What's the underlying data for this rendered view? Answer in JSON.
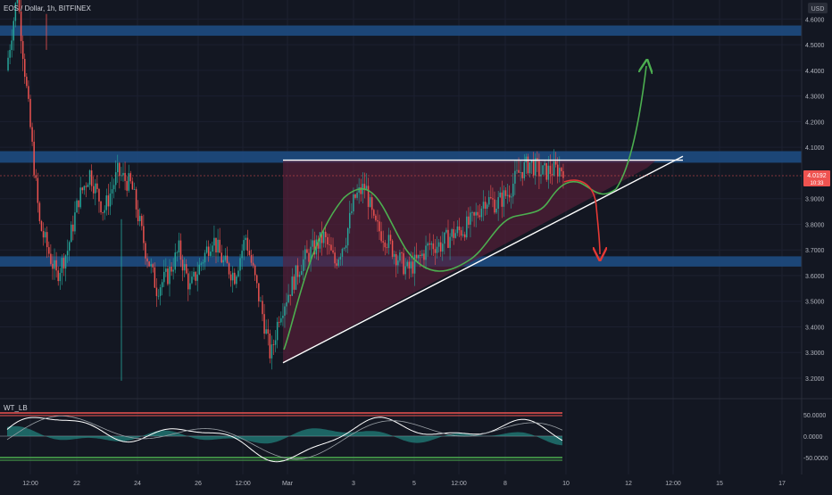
{
  "header": {
    "symbol_line": "EOS / Dollar, 1h, BITFINEX",
    "currency_label": "USD"
  },
  "price_badge": {
    "price": "4.0192",
    "countdown": "10:33"
  },
  "indicator": {
    "name": "WT_LB",
    "ticks": [
      "50.0000",
      "0.0000",
      "-50.0000"
    ],
    "ticks_values": [
      50,
      0,
      -50
    ],
    "range": [
      -80,
      85
    ]
  },
  "colors": {
    "background": "#131722",
    "up_candle": "#26a69a",
    "down_candle": "#ef5350",
    "zone": "#1e4f86",
    "pattern_fill": "#5a1f3a",
    "curve_green": "#4caf50",
    "arrow_red": "#e53935",
    "wt_line": "#ffffff",
    "wt_area": "#26a69a"
  },
  "chart_data": {
    "type": "candlestick",
    "instrument": "EOS / Dollar",
    "timeframe": "1h",
    "exchange": "BITFINEX",
    "x_tick_labels": [
      "12:00",
      "22",
      "24",
      "26",
      "12:00",
      "Mar",
      "3",
      "5",
      "12:00",
      "8",
      "10",
      "12",
      "12:00",
      "15",
      "17"
    ],
    "y_tick_labels": [
      "4.6000",
      "4.5000",
      "4.4000",
      "4.3000",
      "4.2000",
      "4.1000",
      "3.9000",
      "3.8000",
      "3.7000",
      "3.6000",
      "3.5000",
      "3.4000",
      "3.3000",
      "3.2000"
    ],
    "ylim": [
      3.15,
      4.72
    ],
    "last_price": 4.0192,
    "resistance_zones": [
      [
        4.535,
        4.575
      ],
      [
        4.04,
        4.085
      ],
      [
        3.635,
        3.675
      ]
    ],
    "triangle": {
      "resistance_line": [
        [
          0.0,
          4.05
        ],
        [
          1.0,
          4.05
        ]
      ],
      "support_line": [
        [
          0.0,
          3.26
        ],
        [
          1.0,
          4.065
        ]
      ]
    },
    "price_path": [
      [
        0.0,
        4.4
      ],
      [
        0.02,
        4.7
      ],
      [
        0.04,
        4.25
      ],
      [
        0.06,
        3.8
      ],
      [
        0.09,
        3.6
      ],
      [
        0.11,
        3.7
      ],
      [
        0.13,
        3.9
      ],
      [
        0.15,
        4.0
      ],
      [
        0.175,
        3.85
      ],
      [
        0.2,
        4.0
      ],
      [
        0.225,
        3.95
      ],
      [
        0.25,
        3.7
      ],
      [
        0.27,
        3.55
      ],
      [
        0.29,
        3.6
      ],
      [
        0.31,
        3.7
      ],
      [
        0.33,
        3.55
      ],
      [
        0.35,
        3.65
      ],
      [
        0.37,
        3.75
      ],
      [
        0.39,
        3.65
      ],
      [
        0.41,
        3.6
      ],
      [
        0.43,
        3.75
      ],
      [
        0.445,
        3.6
      ],
      [
        0.46,
        3.45
      ],
      [
        0.475,
        3.28
      ],
      [
        0.49,
        3.45
      ],
      [
        0.51,
        3.55
      ],
      [
        0.53,
        3.65
      ],
      [
        0.55,
        3.7
      ],
      [
        0.57,
        3.75
      ],
      [
        0.59,
        3.65
      ],
      [
        0.61,
        3.75
      ],
      [
        0.625,
        3.9
      ],
      [
        0.645,
        3.95
      ],
      [
        0.66,
        3.8
      ],
      [
        0.68,
        3.75
      ],
      [
        0.7,
        3.68
      ],
      [
        0.72,
        3.62
      ],
      [
        0.74,
        3.66
      ],
      [
        0.76,
        3.72
      ],
      [
        0.78,
        3.72
      ],
      [
        0.8,
        3.76
      ],
      [
        0.82,
        3.78
      ],
      [
        0.84,
        3.82
      ],
      [
        0.86,
        3.9
      ],
      [
        0.88,
        3.88
      ],
      [
        0.9,
        3.92
      ],
      [
        0.92,
        4.0
      ],
      [
        0.94,
        4.04
      ],
      [
        0.96,
        4.0
      ],
      [
        0.98,
        4.01
      ],
      [
        1.0,
        4.0192
      ]
    ]
  }
}
